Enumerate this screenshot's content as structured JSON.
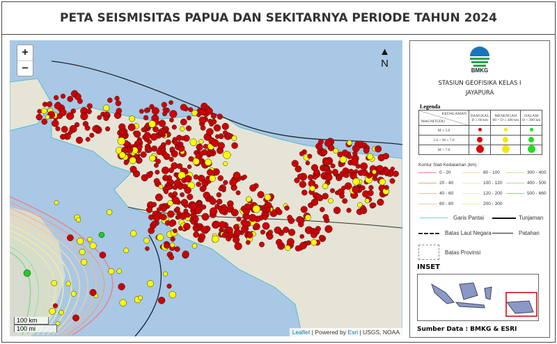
{
  "title": "PETA SEISMISITAS PAPUA DAN SEKITARNYA PERIODE TAHUN 2024",
  "map": {
    "zoom_in": "+",
    "zoom_out": "−",
    "north_label": "N",
    "scale_km": "100 km",
    "scale_mi": "100 mi",
    "attribution": {
      "leaflet": "Leaflet",
      "powered": "| Powered by",
      "esri": "Esri",
      "rest": "| USGS, NOAA"
    },
    "colors": {
      "shallow": "#cc0000",
      "intermediate": "#ffff00",
      "deep": "#22cc22",
      "sea": "#a9c8e6",
      "land": "#e6e4d6"
    }
  },
  "legend": {
    "org": "BMKG",
    "station_line1": "STASIUN GEOFISIKA KELAS I",
    "station_line2": "JAYAPURA",
    "title": "Legenda",
    "header_depth": "KEDALAMAN",
    "header_mag": "MAGNITUDO",
    "depth_cols": [
      {
        "name": "DANGKAL",
        "range": "D ≤ 60 km",
        "color": "#e00000"
      },
      {
        "name": "MENENGAH",
        "range": "60 < D ≤ 300 km",
        "color": "#f5e800"
      },
      {
        "name": "DALAM",
        "range": "D > 300 km",
        "color": "#22dd22"
      }
    ],
    "mag_rows": [
      "M ≤ 5.0",
      "5.0 < M ≤ 7.0",
      "M > 7.0"
    ],
    "contour_title": "Kontur Slab Kedalaman (km) :",
    "contours": [
      {
        "label": "0 - 20",
        "color": "#f08080"
      },
      {
        "label": "20 - 40",
        "color": "#f0a080"
      },
      {
        "label": "40 - 60",
        "color": "#f4b890"
      },
      {
        "label": "60 - 80",
        "color": "#f6c8a0"
      },
      {
        "label": "80 - 100",
        "color": "#f8d8a0"
      },
      {
        "label": "100 - 120",
        "color": "#f5e8a0"
      },
      {
        "label": "120 - 200",
        "color": "#eef0a0"
      },
      {
        "label": "200 - 300",
        "color": "#e4f0a0"
      },
      {
        "label": "300 - 400",
        "color": "#c8eaa0"
      },
      {
        "label": "400 - 500",
        "color": "#a8e0a0"
      },
      {
        "label": "500 - 660",
        "color": "#88d890"
      }
    ],
    "coastline": "Garis Pantai",
    "subduction": "Tunjaman",
    "sea_border": "Batas Laut Negara",
    "fault": "Patahan",
    "province": "Batas Provinsi",
    "inset_title": "INSET",
    "source": "Sumber Data : BMKG & ESRI"
  }
}
